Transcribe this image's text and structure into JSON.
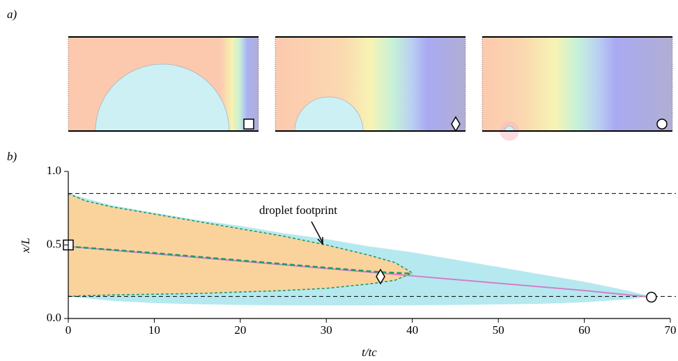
{
  "chart_data": {
    "type": "line",
    "panel_labels": [
      "a)",
      "b)"
    ],
    "xlabel": "t/tc",
    "ylabel": "x/L",
    "annotation": "droplet footprint",
    "xlim": [
      0,
      70
    ],
    "xticks": [
      0,
      10,
      20,
      30,
      40,
      50,
      60,
      70
    ],
    "ylim": [
      0,
      1
    ],
    "yticks": [
      {
        "value": 0,
        "label": "0.0"
      },
      0.5,
      {
        "value": 1,
        "label": "1.0"
      }
    ],
    "hlines": [
      0.85,
      0.15
    ],
    "series": [
      {
        "kind": "area",
        "color": "#b5e9ef",
        "x": [
          0,
          5,
          10,
          15,
          20,
          25,
          30,
          35,
          40,
          45,
          50,
          55,
          60,
          65,
          67.8
        ],
        "values": [
          0.85,
          0.77,
          0.72,
          0.67,
          0.63,
          0.58,
          0.54,
          0.49,
          0.45,
          0.4,
          0.35,
          0.3,
          0.25,
          0.19,
          0.15
        ],
        "lower": [
          0.15,
          0.12,
          0.105,
          0.097,
          0.092,
          0.09,
          0.089,
          0.089,
          0.09,
          0.092,
          0.096,
          0.1,
          0.11,
          0.13,
          0.15
        ]
      },
      {
        "kind": "area",
        "color": "#fad39c",
        "stroke": "#1f9a6c",
        "dash": "4 3",
        "x": [
          0,
          2,
          5,
          10,
          15,
          20,
          25,
          30,
          35,
          38,
          40
        ],
        "values": [
          0.85,
          0.8,
          0.76,
          0.71,
          0.66,
          0.61,
          0.56,
          0.5,
          0.43,
          0.38,
          0.31
        ],
        "lower": [
          0.15,
          0.155,
          0.16,
          0.165,
          0.17,
          0.18,
          0.19,
          0.205,
          0.235,
          0.26,
          0.31
        ]
      },
      {
        "kind": "line",
        "color": "#1f9a6c",
        "dash": "7 4",
        "width": 2.6,
        "x": [
          0,
          10,
          20,
          30,
          36.3,
          40
        ],
        "values": [
          0.49,
          0.445,
          0.395,
          0.345,
          0.315,
          0.305
        ]
      },
      {
        "kind": "line",
        "color": "#d17fc8",
        "width": 2,
        "x": [
          0,
          10,
          20,
          30,
          40,
          50,
          60,
          67.8
        ],
        "values": [
          0.49,
          0.44,
          0.39,
          0.34,
          0.29,
          0.24,
          0.19,
          0.145
        ]
      }
    ],
    "markers": [
      {
        "shape": "square",
        "x": 0,
        "value": 0.5
      },
      {
        "shape": "diamond",
        "x": 36.3,
        "value": 0.285
      },
      {
        "shape": "circle",
        "x": 67.8,
        "value": 0.145
      }
    ]
  }
}
